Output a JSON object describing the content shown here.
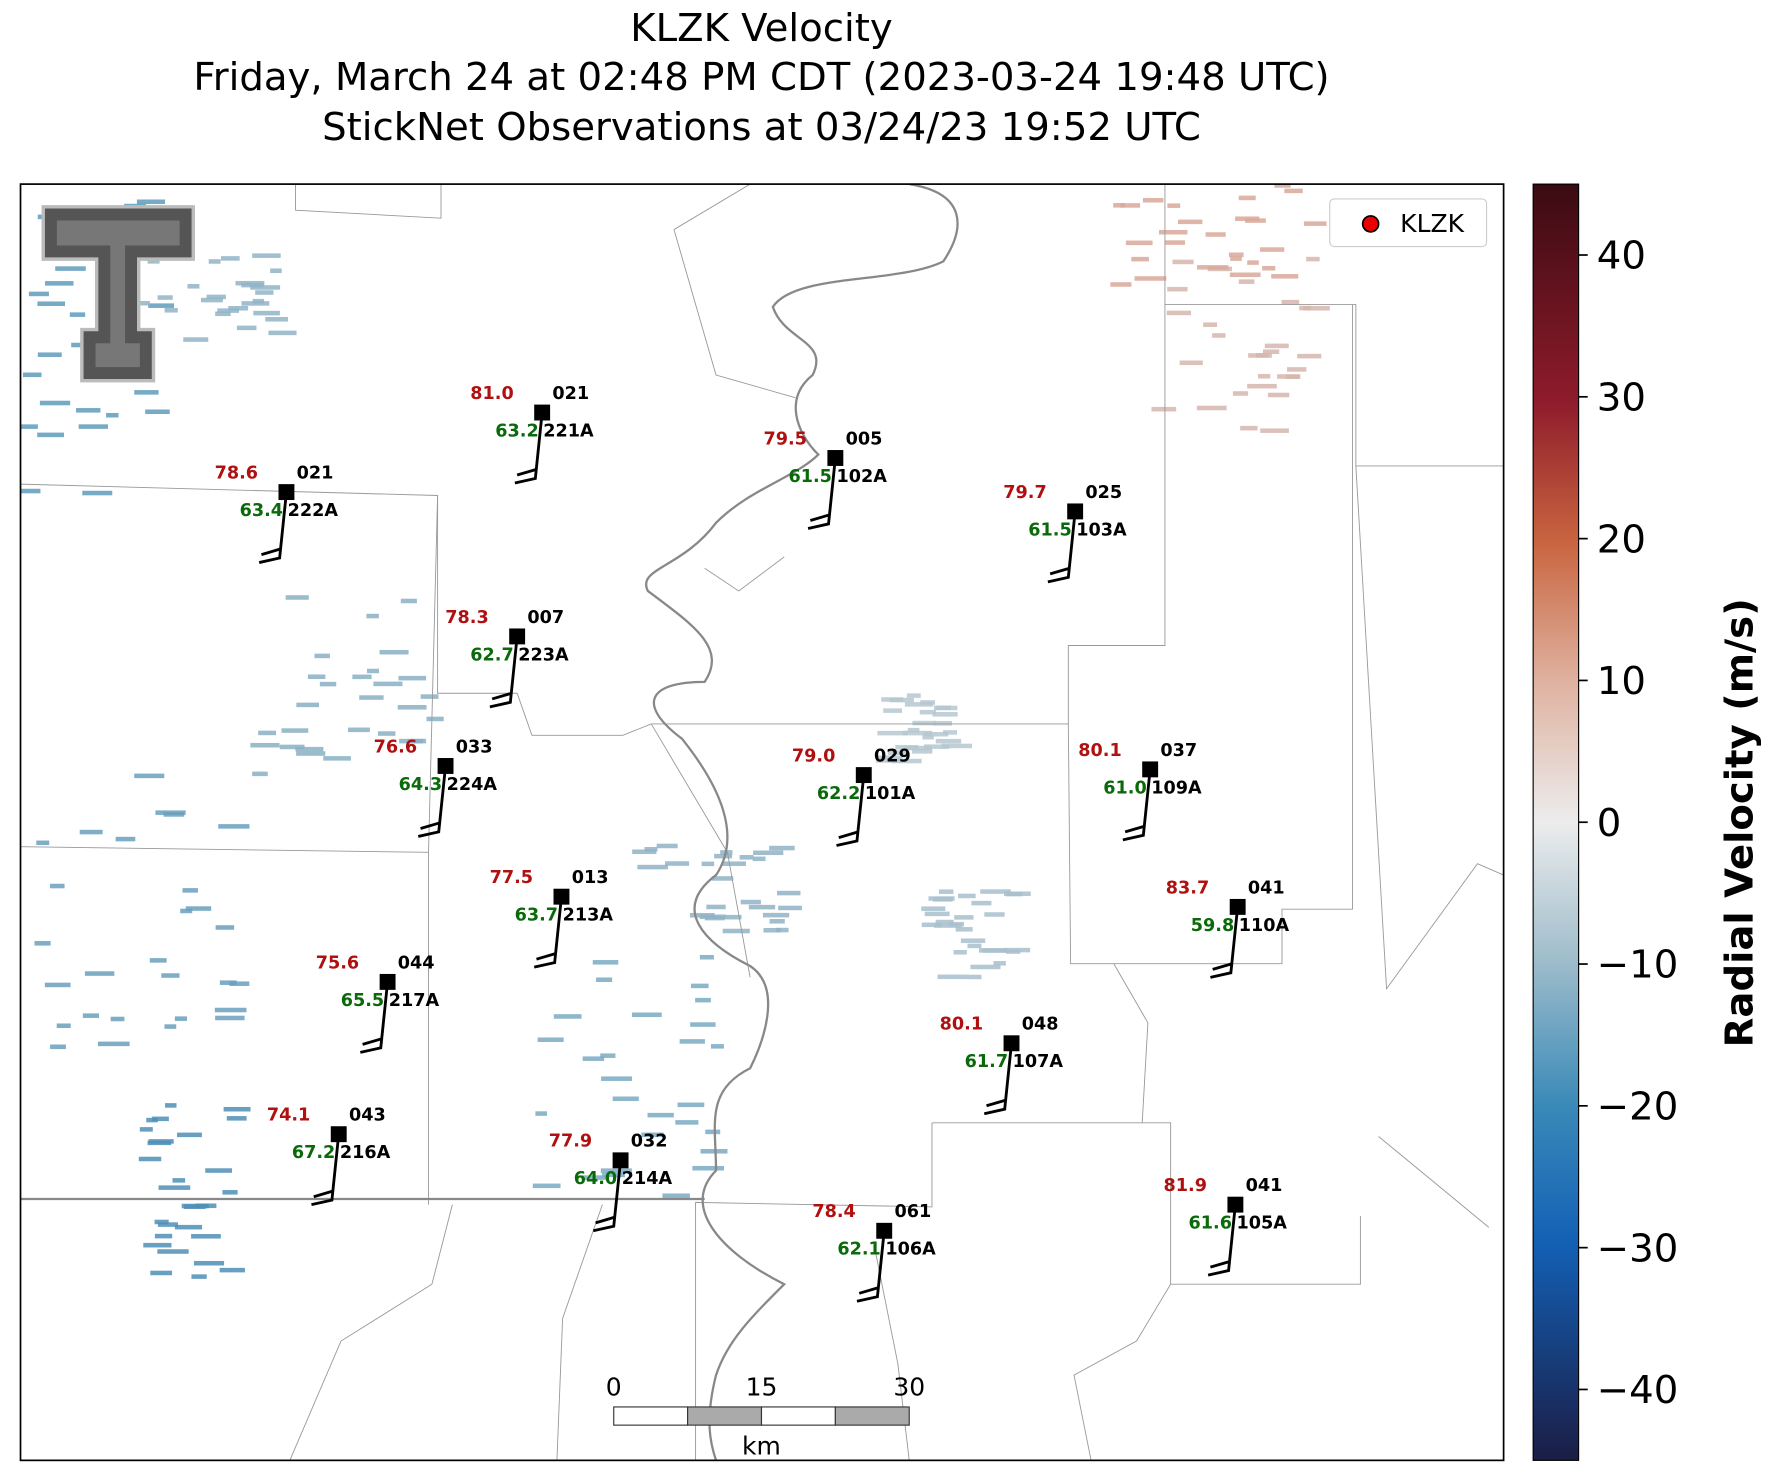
{
  "title": [
    "KLZK Velocity",
    "Friday, March 24 at 02:48 PM CDT (2023-03-24 19:48 UTC)",
    "StickNet Observations at 03/24/23 19:52 UTC"
  ],
  "legend": "KLZK",
  "stations": [
    {
      "id": "221A",
      "temperature": 81.0,
      "dewpoint": 63.2,
      "code": "021"
    },
    {
      "id": "222A",
      "temperature": 78.6,
      "dewpoint": 63.4,
      "code": "021"
    },
    {
      "id": "102A",
      "temperature": 79.5,
      "dewpoint": 61.5,
      "code": "005"
    },
    {
      "id": "103A",
      "temperature": 79.7,
      "dewpoint": 61.5,
      "code": "025"
    },
    {
      "id": "223A",
      "temperature": 78.3,
      "dewpoint": 62.7,
      "code": "007"
    },
    {
      "id": "224A",
      "temperature": 76.6,
      "dewpoint": 64.3,
      "code": "033"
    },
    {
      "id": "101A",
      "temperature": 79.0,
      "dewpoint": 62.2,
      "code": "029"
    },
    {
      "id": "109A",
      "temperature": 80.1,
      "dewpoint": 61.0,
      "code": "037"
    },
    {
      "id": "213A",
      "temperature": 77.5,
      "dewpoint": 63.7,
      "code": "013"
    },
    {
      "id": "110A",
      "temperature": 83.7,
      "dewpoint": 59.8,
      "code": "041"
    },
    {
      "id": "217A",
      "temperature": 75.6,
      "dewpoint": 65.5,
      "code": "044"
    },
    {
      "id": "107A",
      "temperature": 80.1,
      "dewpoint": 61.7,
      "code": "048"
    },
    {
      "id": "216A",
      "temperature": 74.1,
      "dewpoint": 67.2,
      "code": "043"
    },
    {
      "id": "214A",
      "temperature": 77.9,
      "dewpoint": 64.0,
      "code": "032"
    },
    {
      "id": "106A",
      "temperature": 78.4,
      "dewpoint": 62.1,
      "code": "061"
    },
    {
      "id": "105A",
      "temperature": 81.9,
      "dewpoint": 61.6,
      "code": "041"
    }
  ],
  "scale_bar": {
    "ticks": [
      0,
      15,
      30
    ],
    "unit": "km"
  },
  "colorbar": {
    "label": "Radial Velocity (m/s)",
    "lim": [
      -45,
      45
    ],
    "ticks": [
      {
        "value": -40,
        "label": "−40"
      },
      {
        "value": -30,
        "label": "−30"
      },
      {
        "value": -20,
        "label": "−20"
      },
      {
        "value": -10,
        "label": "−10"
      },
      0,
      10,
      20,
      30,
      40
    ]
  }
}
